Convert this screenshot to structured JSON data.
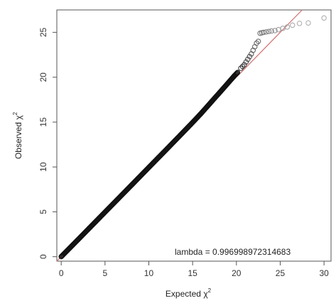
{
  "chart_data": {
    "type": "scatter",
    "xlabel": "Expected",
    "ylabel": "Observed",
    "axis_symbol": "χ",
    "axis_superscript": "2",
    "xlim": [
      -0.5,
      30.8
    ],
    "ylim": [
      -0.5,
      27.5
    ],
    "xticks": [
      0,
      5,
      10,
      15,
      20,
      25,
      30
    ],
    "yticks": [
      0,
      5,
      10,
      15,
      20,
      25
    ],
    "annotation": "lambda =  0.996998972314683",
    "reference_line": {
      "slope": 1,
      "intercept": 0,
      "color": "#d07070"
    },
    "point_color": "#111111",
    "dense_curve_points": [
      [
        0,
        0
      ],
      [
        2,
        1.98
      ],
      [
        4,
        3.97
      ],
      [
        6,
        5.96
      ],
      [
        8,
        7.95
      ],
      [
        10,
        9.95
      ],
      [
        12,
        11.94
      ],
      [
        14,
        13.95
      ],
      [
        15,
        14.96
      ],
      [
        16,
        16.0
      ],
      [
        17,
        17.1
      ],
      [
        18,
        18.2
      ],
      [
        19,
        19.3
      ],
      [
        19.8,
        20.2
      ],
      [
        20.2,
        20.6
      ]
    ],
    "tail_points": [
      [
        20.5,
        21.0
      ],
      [
        20.7,
        21.2
      ],
      [
        20.9,
        21.4
      ],
      [
        21.1,
        21.7
      ],
      [
        21.3,
        22.0
      ],
      [
        21.5,
        22.3
      ],
      [
        21.7,
        22.6
      ],
      [
        21.9,
        23.0
      ],
      [
        22.1,
        23.4
      ],
      [
        22.3,
        23.8
      ],
      [
        22.5,
        24.0
      ],
      [
        22.7,
        24.9
      ],
      [
        22.9,
        24.95
      ],
      [
        23.1,
        25.0
      ],
      [
        23.4,
        25.05
      ],
      [
        23.7,
        25.1
      ],
      [
        24.0,
        25.15
      ],
      [
        24.4,
        25.2
      ],
      [
        24.8,
        25.3
      ],
      [
        25.3,
        25.45
      ],
      [
        25.8,
        25.6
      ],
      [
        26.4,
        25.8
      ],
      [
        27.2,
        26.0
      ],
      [
        28.2,
        26.05
      ],
      [
        30.0,
        26.6
      ]
    ]
  }
}
